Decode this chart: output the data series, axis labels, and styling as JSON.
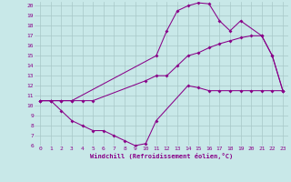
{
  "xlabel": "Windchill (Refroidissement éolien,°C)",
  "bg_color": "#c8e8e8",
  "grid_color": "#a8c8c8",
  "line_color": "#880088",
  "xlim": [
    -0.5,
    23.5
  ],
  "ylim": [
    6,
    20.4
  ],
  "xticks": [
    0,
    1,
    2,
    3,
    4,
    5,
    6,
    7,
    8,
    9,
    10,
    11,
    12,
    13,
    14,
    15,
    16,
    17,
    18,
    19,
    20,
    21,
    22,
    23
  ],
  "yticks": [
    6,
    7,
    8,
    9,
    10,
    11,
    12,
    13,
    14,
    15,
    16,
    17,
    18,
    19,
    20
  ],
  "line1_x": [
    0,
    1,
    2,
    3,
    11,
    12,
    13,
    14,
    15,
    16,
    17,
    18,
    19,
    21,
    22,
    23
  ],
  "line1_y": [
    10.5,
    10.5,
    10.5,
    10.5,
    15.0,
    17.5,
    19.5,
    20.0,
    20.3,
    20.2,
    18.5,
    17.5,
    18.5,
    17.0,
    15.0,
    11.5
  ],
  "line2_x": [
    0,
    1,
    2,
    3,
    4,
    5,
    10,
    11,
    12,
    13,
    14,
    15,
    16,
    17,
    18,
    19,
    20,
    21,
    22,
    23
  ],
  "line2_y": [
    10.5,
    10.5,
    10.5,
    10.5,
    10.5,
    10.5,
    12.5,
    13.0,
    13.0,
    14.0,
    15.0,
    15.3,
    15.8,
    16.2,
    16.5,
    16.8,
    17.0,
    17.0,
    15.0,
    11.5
  ],
  "line3_x": [
    0,
    1,
    2,
    3,
    4,
    5,
    6,
    7,
    8,
    9,
    10,
    11,
    14,
    15,
    16,
    17,
    18,
    19,
    20,
    21,
    22,
    23
  ],
  "line3_y": [
    10.5,
    10.5,
    9.5,
    8.5,
    8.0,
    7.5,
    7.5,
    7.0,
    6.5,
    6.0,
    6.2,
    8.5,
    12.0,
    11.8,
    11.5,
    11.5,
    11.5,
    11.5,
    11.5,
    11.5,
    11.5,
    11.5
  ]
}
